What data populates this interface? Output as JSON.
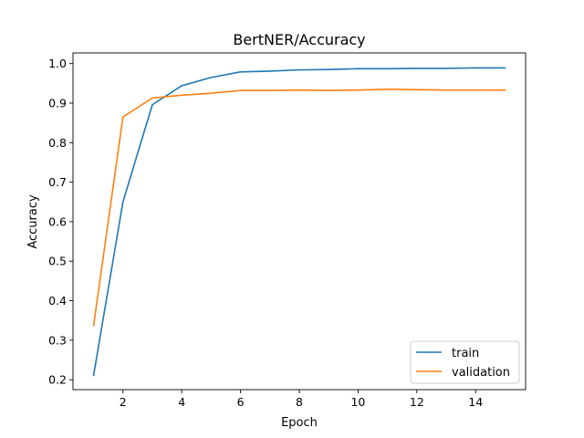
{
  "chart_data": {
    "type": "line",
    "title": "BertNER/Accuracy",
    "xlabel": "Epoch",
    "ylabel": "Accuracy",
    "xlim": [
      0.3,
      15.7
    ],
    "ylim": [
      0.175,
      1.027
    ],
    "xticks": [
      2,
      4,
      6,
      8,
      10,
      12,
      14
    ],
    "yticks": [
      0.2,
      0.3,
      0.4,
      0.5,
      0.6,
      0.7,
      0.8,
      0.9,
      1.0
    ],
    "ytick_labels": [
      "0.2",
      "0.3",
      "0.4",
      "0.5",
      "0.6",
      "0.7",
      "0.8",
      "0.9",
      "1.0"
    ],
    "x": [
      1,
      2,
      3,
      4,
      5,
      6,
      7,
      8,
      9,
      10,
      11,
      12,
      13,
      14,
      15
    ],
    "series": [
      {
        "name": "train",
        "color": "#1f77b4",
        "values": [
          0.211,
          0.65,
          0.896,
          0.944,
          0.965,
          0.979,
          0.981,
          0.984,
          0.985,
          0.987,
          0.987,
          0.988,
          0.988,
          0.989,
          0.989
        ]
      },
      {
        "name": "validation",
        "color": "#ff7f0e",
        "values": [
          0.337,
          0.865,
          0.913,
          0.92,
          0.925,
          0.932,
          0.932,
          0.933,
          0.932,
          0.933,
          0.935,
          0.934,
          0.933,
          0.933,
          0.933
        ]
      }
    ],
    "legend_position": "lower-right",
    "grid": false
  }
}
